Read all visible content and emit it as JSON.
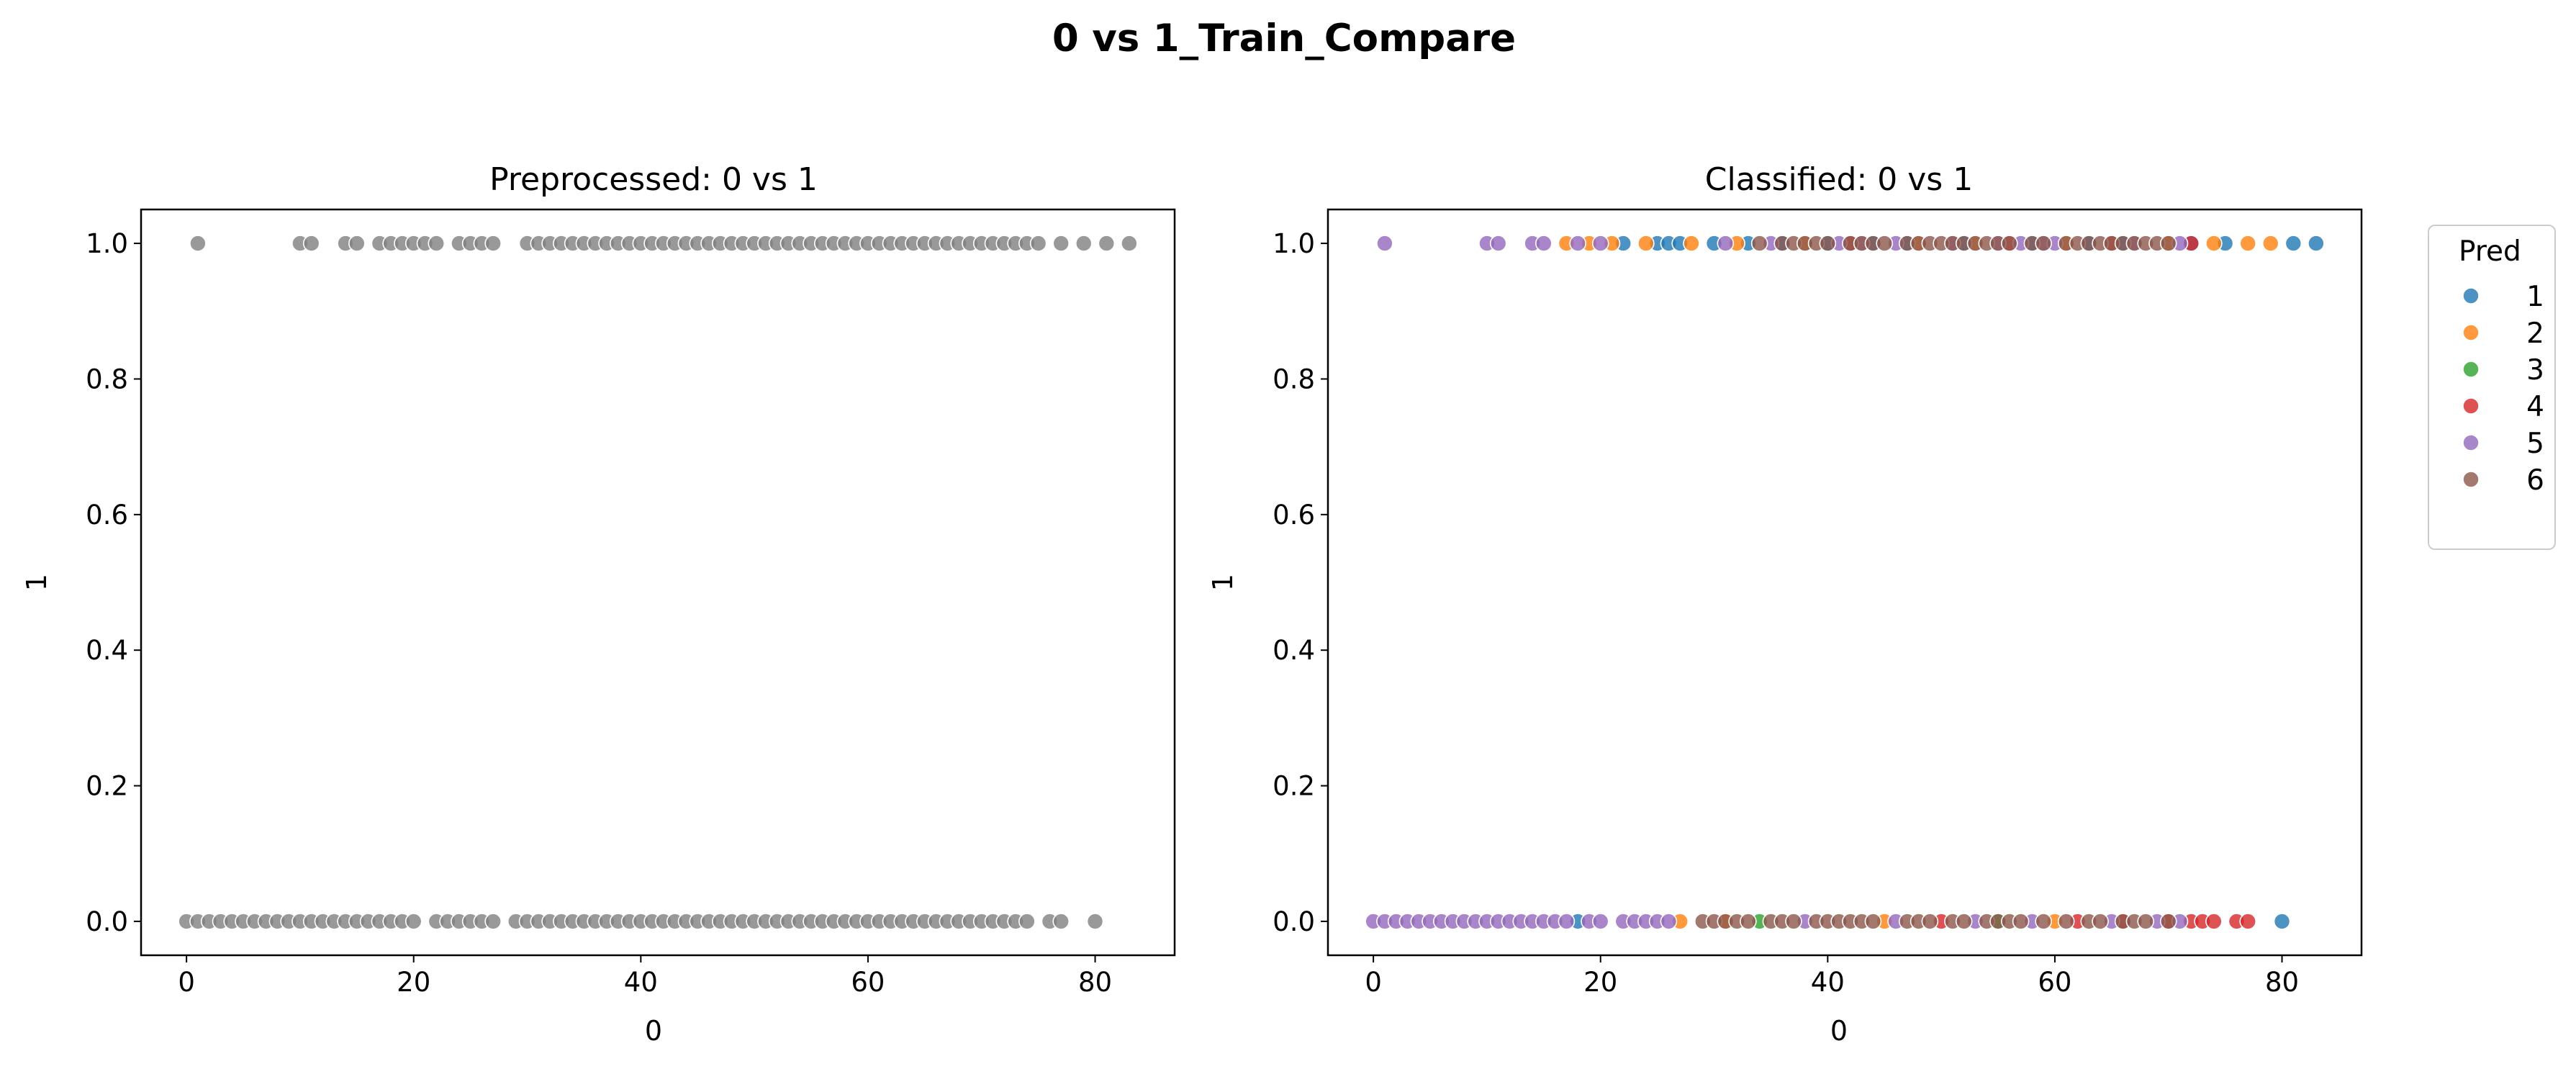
{
  "figure_title": "0 vs 1_Train_Compare",
  "colors": {
    "background": "#ffffff",
    "axis": "#000000",
    "pred_1": "#1f77b4",
    "pred_2": "#ff7f0e",
    "pred_3": "#2ca02c",
    "pred_4": "#d62728",
    "pred_5": "#9467bd",
    "pred_6": "#8c564b",
    "preprocessed_points": "#808080"
  },
  "chart_data": [
    {
      "type": "scatter",
      "title": "Preprocessed: 0 vs 1",
      "xlabel": "0",
      "ylabel": "1",
      "xlim": [
        -4,
        87
      ],
      "ylim": [
        -0.05,
        1.05
      ],
      "xticks": [
        0,
        20,
        40,
        60,
        80
      ],
      "yticks": [
        0.0,
        0.2,
        0.4,
        0.6,
        0.8,
        1.0
      ],
      "ytick_labels": [
        "0.0",
        "0.2",
        "0.4",
        "0.6",
        "0.8",
        "1.0"
      ],
      "grid": false,
      "series": [
        {
          "color": "#808080",
          "points_y1_x": [
            1,
            10,
            11,
            14,
            15,
            17,
            18,
            19,
            20,
            21,
            22,
            24,
            25,
            26,
            27,
            30,
            31,
            32,
            33,
            34,
            35,
            36,
            37,
            38,
            39,
            40,
            41,
            42,
            43,
            44,
            45,
            46,
            47,
            48,
            49,
            50,
            51,
            52,
            53,
            54,
            55,
            56,
            57,
            58,
            59,
            60,
            61,
            62,
            63,
            64,
            65,
            66,
            67,
            68,
            69,
            70,
            71,
            72,
            73,
            74,
            75,
            77,
            79,
            81,
            83
          ],
          "points_y0_x": [
            0,
            1,
            2,
            3,
            4,
            5,
            6,
            7,
            8,
            9,
            10,
            11,
            12,
            13,
            14,
            15,
            16,
            17,
            18,
            19,
            20,
            22,
            23,
            24,
            25,
            26,
            27,
            29,
            30,
            31,
            32,
            33,
            34,
            35,
            36,
            37,
            38,
            39,
            40,
            41,
            42,
            43,
            44,
            45,
            46,
            47,
            48,
            49,
            50,
            51,
            52,
            53,
            54,
            55,
            56,
            57,
            58,
            59,
            60,
            61,
            62,
            63,
            64,
            65,
            66,
            67,
            68,
            69,
            70,
            71,
            72,
            73,
            74,
            76,
            77,
            80
          ]
        }
      ]
    },
    {
      "type": "scatter",
      "title": "Classified: 0 vs 1",
      "xlabel": "0",
      "ylabel": "1",
      "xlim": [
        -4,
        87
      ],
      "ylim": [
        -0.05,
        1.05
      ],
      "xticks": [
        0,
        20,
        40,
        60,
        80
      ],
      "yticks": [
        0.0,
        0.2,
        0.4,
        0.6,
        0.8,
        1.0
      ],
      "ytick_labels": [
        "0.0",
        "0.2",
        "0.4",
        "0.6",
        "0.8",
        "1.0"
      ],
      "grid": false,
      "legend": {
        "title": "Pred",
        "placement": "outside upper right",
        "labels": [
          "1",
          "2",
          "3",
          "4",
          "5",
          "6"
        ]
      },
      "series": [
        {
          "name": "1",
          "color": "#1f77b4",
          "points": [
            [
              22,
              1
            ],
            [
              25,
              1
            ],
            [
              26,
              1
            ],
            [
              27,
              1
            ],
            [
              30,
              1
            ],
            [
              33,
              1
            ],
            [
              36,
              1
            ],
            [
              40,
              1
            ],
            [
              44,
              1
            ],
            [
              47,
              1
            ],
            [
              52,
              1
            ],
            [
              58,
              1
            ],
            [
              63,
              1
            ],
            [
              66,
              1
            ],
            [
              72,
              1
            ],
            [
              75,
              1
            ],
            [
              81,
              1
            ],
            [
              83,
              1
            ],
            [
              18,
              0
            ],
            [
              80,
              0
            ]
          ]
        },
        {
          "name": "2",
          "color": "#ff7f0e",
          "points": [
            [
              17,
              1
            ],
            [
              19,
              1
            ],
            [
              21,
              1
            ],
            [
              24,
              1
            ],
            [
              28,
              1
            ],
            [
              32,
              1
            ],
            [
              38,
              1
            ],
            [
              48,
              1
            ],
            [
              53,
              1
            ],
            [
              61,
              1
            ],
            [
              70,
              1
            ],
            [
              74,
              1
            ],
            [
              77,
              1
            ],
            [
              79,
              1
            ],
            [
              27,
              0
            ],
            [
              31,
              0
            ],
            [
              45,
              0
            ],
            [
              60,
              0
            ]
          ]
        },
        {
          "name": "3",
          "color": "#2ca02c",
          "points": [
            [
              34,
              0
            ],
            [
              55,
              0
            ]
          ]
        },
        {
          "name": "4",
          "color": "#d62728",
          "points": [
            [
              42,
              1
            ],
            [
              56,
              1
            ],
            [
              65,
              1
            ],
            [
              72,
              1
            ],
            [
              50,
              0
            ],
            [
              62,
              0
            ],
            [
              66,
              0
            ],
            [
              70,
              0
            ],
            [
              72,
              0
            ],
            [
              73,
              0
            ],
            [
              74,
              0
            ],
            [
              76,
              0
            ],
            [
              77,
              0
            ]
          ]
        },
        {
          "name": "5",
          "color": "#9467bd",
          "points": [
            [
              1,
              1
            ],
            [
              10,
              1
            ],
            [
              11,
              1
            ],
            [
              14,
              1
            ],
            [
              15,
              1
            ],
            [
              18,
              1
            ],
            [
              20,
              1
            ],
            [
              31,
              1
            ],
            [
              35,
              1
            ],
            [
              41,
              1
            ],
            [
              43,
              1
            ],
            [
              46,
              1
            ],
            [
              51,
              1
            ],
            [
              55,
              1
            ],
            [
              57,
              1
            ],
            [
              59,
              1
            ],
            [
              60,
              1
            ],
            [
              67,
              1
            ],
            [
              71,
              1
            ],
            [
              0,
              0
            ],
            [
              1,
              0
            ],
            [
              2,
              0
            ],
            [
              3,
              0
            ],
            [
              4,
              0
            ],
            [
              5,
              0
            ],
            [
              6,
              0
            ],
            [
              7,
              0
            ],
            [
              8,
              0
            ],
            [
              9,
              0
            ],
            [
              10,
              0
            ],
            [
              11,
              0
            ],
            [
              12,
              0
            ],
            [
              13,
              0
            ],
            [
              14,
              0
            ],
            [
              15,
              0
            ],
            [
              16,
              0
            ],
            [
              17,
              0
            ],
            [
              19,
              0
            ],
            [
              20,
              0
            ],
            [
              22,
              0
            ],
            [
              23,
              0
            ],
            [
              24,
              0
            ],
            [
              25,
              0
            ],
            [
              26,
              0
            ],
            [
              38,
              0
            ],
            [
              46,
              0
            ],
            [
              53,
              0
            ],
            [
              58,
              0
            ],
            [
              65,
              0
            ],
            [
              69,
              0
            ],
            [
              71,
              0
            ]
          ]
        },
        {
          "name": "6",
          "color": "#8c564b",
          "points": [
            [
              34,
              1
            ],
            [
              36,
              1
            ],
            [
              37,
              1
            ],
            [
              38,
              1
            ],
            [
              39,
              1
            ],
            [
              40,
              1
            ],
            [
              42,
              1
            ],
            [
              43,
              1
            ],
            [
              44,
              1
            ],
            [
              45,
              1
            ],
            [
              47,
              1
            ],
            [
              48,
              1
            ],
            [
              49,
              1
            ],
            [
              50,
              1
            ],
            [
              51,
              1
            ],
            [
              52,
              1
            ],
            [
              53,
              1
            ],
            [
              54,
              1
            ],
            [
              55,
              1
            ],
            [
              56,
              1
            ],
            [
              58,
              1
            ],
            [
              59,
              1
            ],
            [
              61,
              1
            ],
            [
              62,
              1
            ],
            [
              63,
              1
            ],
            [
              64,
              1
            ],
            [
              65,
              1
            ],
            [
              66,
              1
            ],
            [
              67,
              1
            ],
            [
              68,
              1
            ],
            [
              69,
              1
            ],
            [
              70,
              1
            ],
            [
              29,
              0
            ],
            [
              30,
              0
            ],
            [
              31,
              0
            ],
            [
              32,
              0
            ],
            [
              33,
              0
            ],
            [
              35,
              0
            ],
            [
              36,
              0
            ],
            [
              37,
              0
            ],
            [
              39,
              0
            ],
            [
              40,
              0
            ],
            [
              41,
              0
            ],
            [
              42,
              0
            ],
            [
              43,
              0
            ],
            [
              44,
              0
            ],
            [
              47,
              0
            ],
            [
              48,
              0
            ],
            [
              49,
              0
            ],
            [
              51,
              0
            ],
            [
              52,
              0
            ],
            [
              54,
              0
            ],
            [
              55,
              0
            ],
            [
              56,
              0
            ],
            [
              57,
              0
            ],
            [
              59,
              0
            ],
            [
              61,
              0
            ],
            [
              63,
              0
            ],
            [
              64,
              0
            ],
            [
              66,
              0
            ],
            [
              67,
              0
            ],
            [
              68,
              0
            ],
            [
              70,
              0
            ]
          ]
        }
      ]
    }
  ]
}
